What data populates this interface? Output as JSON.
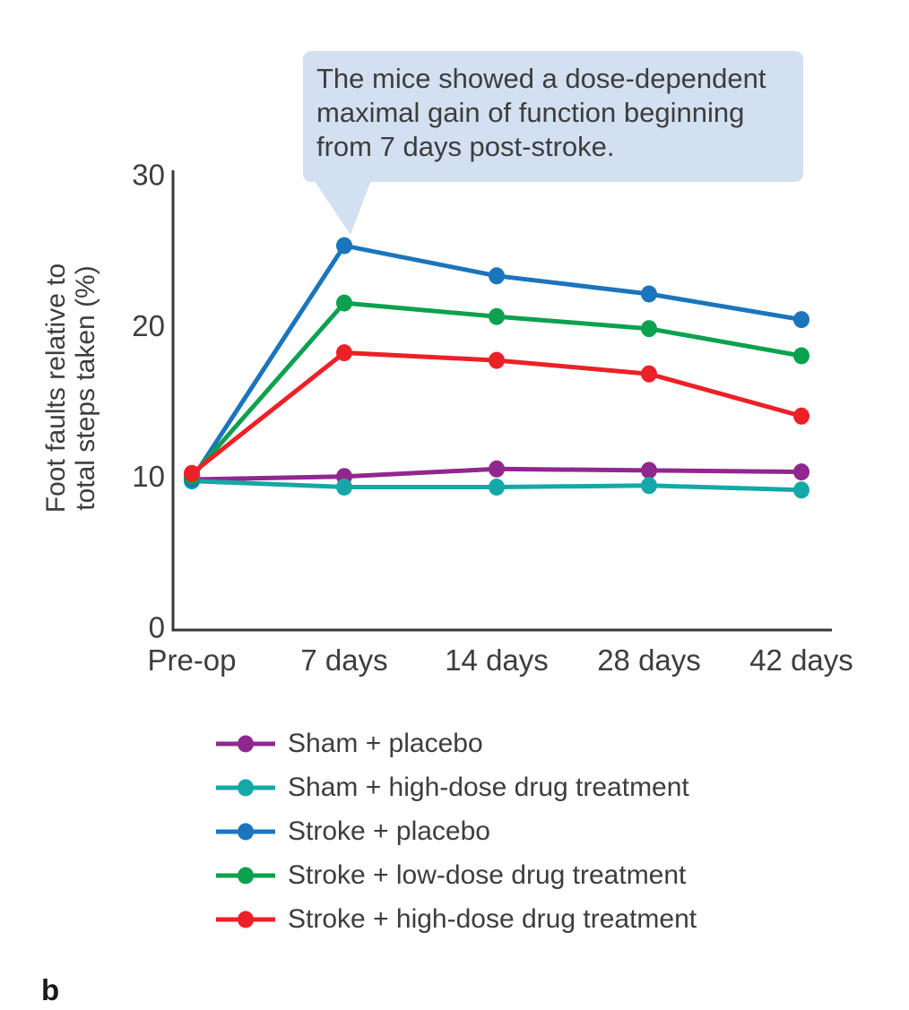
{
  "figure_label": "b",
  "callout": {
    "text": "The mice showed a dose-dependent\nmaximal gain of function beginning\nfrom 7 days post-stroke.",
    "bg_color": "#d3e0f1",
    "text_color": "#3d3d3d"
  },
  "chart_data": {
    "type": "line",
    "title": "",
    "xlabel": "",
    "ylabel": "Foot faults relative to\ntotal steps taken (%)",
    "categories": [
      "Pre-op",
      "7 days",
      "14 days",
      "28 days",
      "42 days"
    ],
    "series": [
      {
        "name": "Sham + placebo",
        "color": "#90278e",
        "values": [
          9.8,
          10.0,
          10.5,
          10.4,
          10.3
        ]
      },
      {
        "name": "Sham + high-dose drug treatment",
        "color": "#14a8a8",
        "values": [
          9.7,
          9.3,
          9.3,
          9.4,
          9.1
        ]
      },
      {
        "name": "Stroke + placebo",
        "color": "#1b75bc",
        "values": [
          9.8,
          25.3,
          23.3,
          22.1,
          20.4
        ]
      },
      {
        "name": "Stroke + low-dose drug treatment",
        "color": "#0ca14e",
        "values": [
          10.0,
          21.5,
          20.6,
          19.8,
          18.0
        ]
      },
      {
        "name": "Stroke + high-dose drug treatment",
        "color": "#ec2127",
        "values": [
          10.2,
          18.2,
          17.7,
          16.8,
          14.0
        ]
      }
    ],
    "yticks": [
      0,
      10,
      20,
      30
    ],
    "ylim": [
      0,
      30
    ],
    "grid": false,
    "legend_position": "bottom",
    "axis_color": "#383838",
    "text_color": "#3d3d3d",
    "marker": "circle",
    "annotation_points_to": "Stroke + placebo at 7 days"
  }
}
